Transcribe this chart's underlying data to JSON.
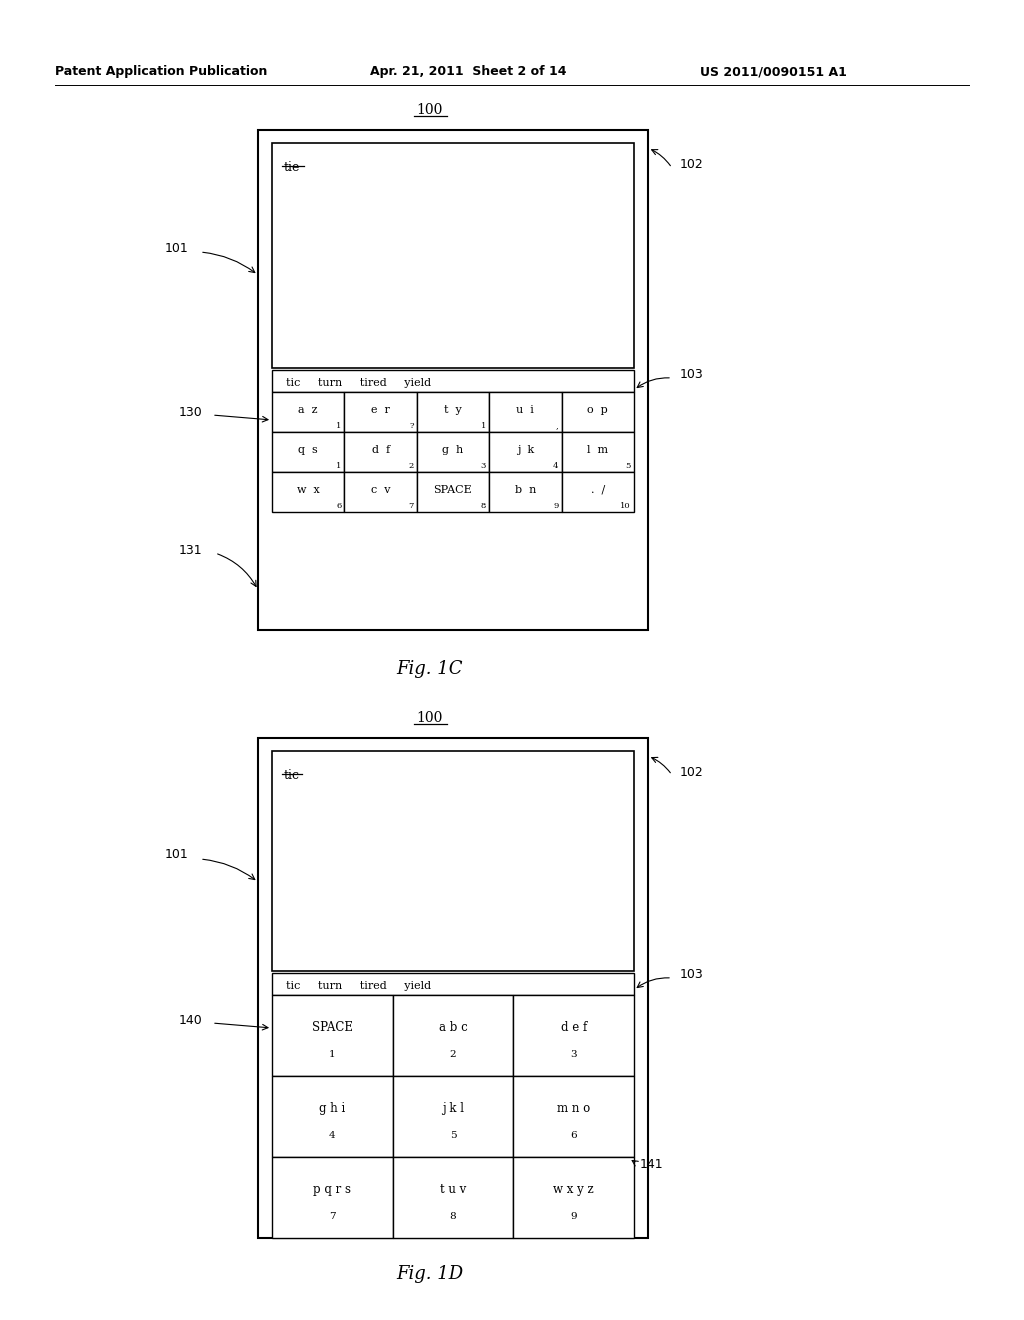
{
  "header_left": "Patent Application Publication",
  "header_mid": "Apr. 21, 2011  Sheet 2 of 14",
  "header_right": "US 2011/0090151 A1",
  "bg_color": "#ffffff",
  "fig1c": {
    "label": "Fig. 1C",
    "display_text": "tie",
    "suggestions": "tic     turn     tired     yield",
    "keys_row1": [
      [
        "a  z",
        "1"
      ],
      [
        "e  r",
        "?"
      ],
      [
        "t  y",
        "1"
      ],
      [
        "u  i",
        ","
      ],
      [
        "o  p",
        ""
      ]
    ],
    "keys_row2": [
      [
        "q  s",
        "1"
      ],
      [
        "d  f",
        "2"
      ],
      [
        "g  h",
        "3"
      ],
      [
        "j  k",
        "4"
      ],
      [
        "l  m",
        "5"
      ]
    ],
    "keys_row3": [
      [
        "w  x",
        "6"
      ],
      [
        "c  v",
        "7"
      ],
      [
        "SPACE",
        "8"
      ],
      [
        "b  n",
        "9"
      ],
      [
        ".  /",
        "10"
      ]
    ]
  },
  "fig1d": {
    "label": "Fig. 1D",
    "display_text": "tic",
    "suggestions": "tic     turn     tired     yield",
    "keys_row1": [
      [
        "SPACE",
        "1"
      ],
      [
        "a b c",
        "2"
      ],
      [
        "d e f",
        "3"
      ]
    ],
    "keys_row2": [
      [
        "g h i",
        "4"
      ],
      [
        "j k l",
        "5"
      ],
      [
        "m n o",
        "6"
      ]
    ],
    "keys_row3": [
      [
        "p q r s",
        "7"
      ],
      [
        "t u v",
        "8"
      ],
      [
        "w x y z",
        "9"
      ]
    ]
  }
}
